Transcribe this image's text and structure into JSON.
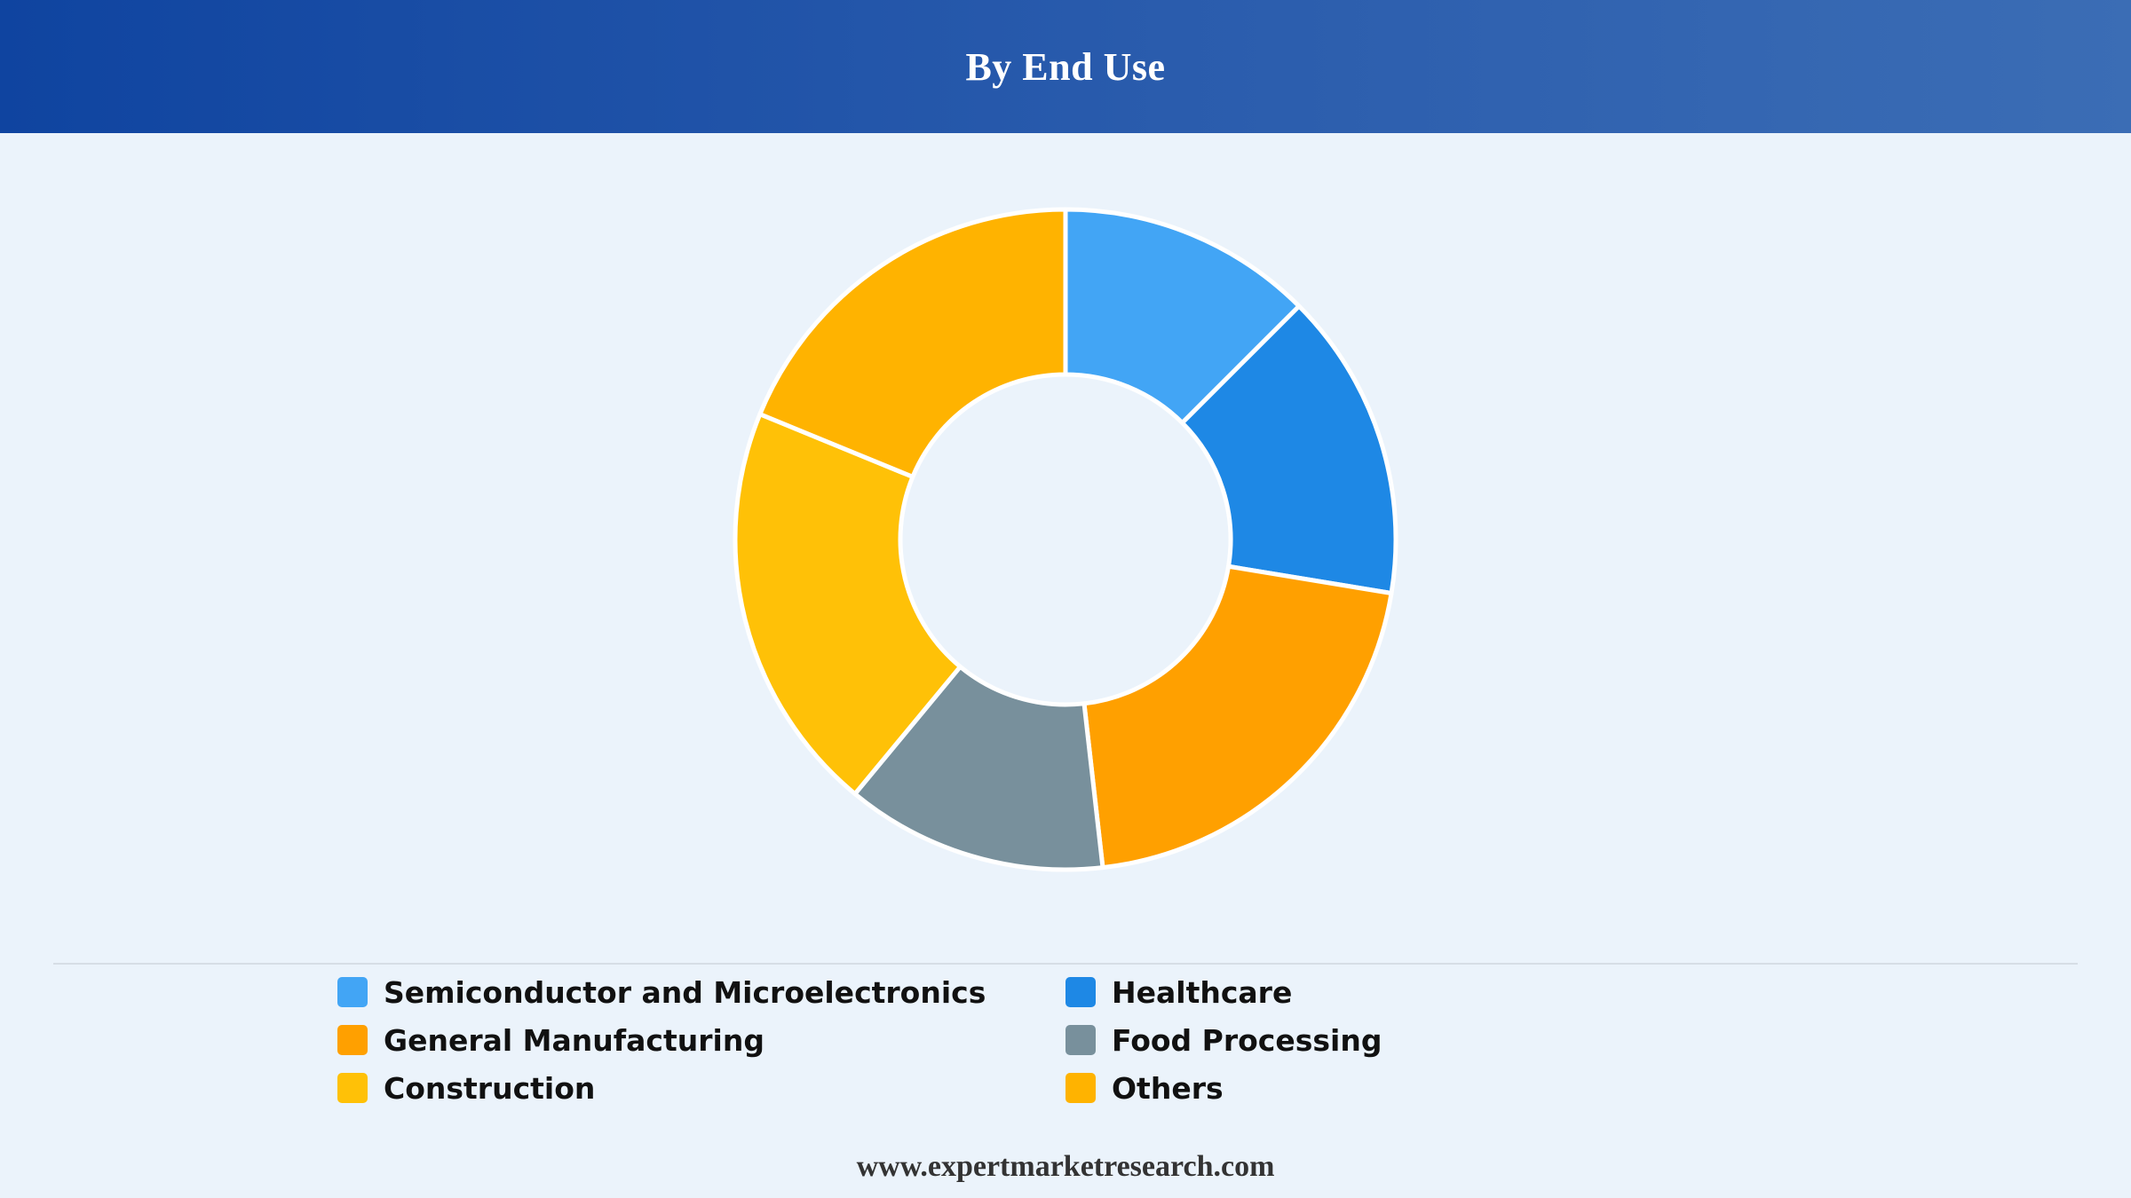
{
  "header": {
    "title": "By End Use"
  },
  "chart_data": {
    "type": "pie",
    "donut": true,
    "categories": [
      "Semiconductor and Microelectronics",
      "Healthcare",
      "General Manufacturing",
      "Food Processing",
      "Construction",
      "Others"
    ],
    "values": [
      12.5,
      15.1,
      20.6,
      12.8,
      20.2,
      18.8
    ],
    "colors": [
      "#42a5f5",
      "#1e88e5",
      "#ffa000",
      "#78909c",
      "#ffc107",
      "#ffb300"
    ],
    "legend_position": "bottom"
  },
  "footer": {
    "source": "www.expertmarketresearch.com"
  }
}
